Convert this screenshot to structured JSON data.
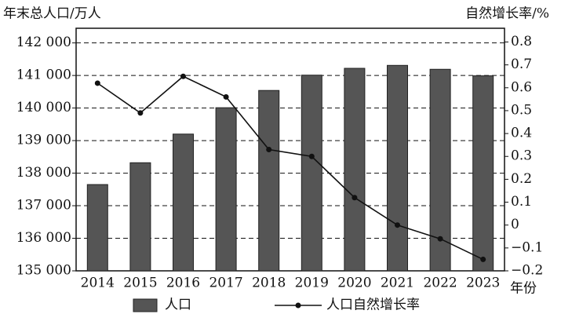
{
  "chart_data": {
    "type": "bar",
    "y_label": "年末总人口/万人",
    "y2_label": "自然增长率/%",
    "x_label": "年份",
    "categories": [
      "2014",
      "2015",
      "2016",
      "2017",
      "2018",
      "2019",
      "2020",
      "2021",
      "2022",
      "2023"
    ],
    "series": [
      {
        "name": "人口",
        "type": "bar",
        "color": "#555555",
        "values": [
          137650,
          138320,
          139200,
          140010,
          140540,
          141010,
          141220,
          141310,
          141190,
          140990
        ]
      },
      {
        "name": "人口自然增长率",
        "type": "line",
        "axis": "y2",
        "color": "#111111",
        "values": [
          0.62,
          0.49,
          0.65,
          0.56,
          0.33,
          0.3,
          0.12,
          0.0,
          -0.06,
          -0.15
        ]
      }
    ],
    "ylim": [
      135000,
      142450
    ],
    "yticks": [
      {
        "value": 135000,
        "label": "135 000"
      },
      {
        "value": 136000,
        "label": "136 000"
      },
      {
        "value": 137000,
        "label": "137 000"
      },
      {
        "value": 138000,
        "label": "138 000"
      },
      {
        "value": 139000,
        "label": "139 000"
      },
      {
        "value": 140000,
        "label": "140 000"
      },
      {
        "value": 141000,
        "label": "141 000"
      },
      {
        "value": 142000,
        "label": "142 000"
      }
    ],
    "y2lim": [
      -0.2,
      0.86
    ],
    "y2ticks": [
      {
        "value": -0.2,
        "label": "−0.2"
      },
      {
        "value": -0.1,
        "label": "−0.1"
      },
      0,
      0.1,
      0.2,
      0.3,
      0.4,
      0.5,
      0.6,
      0.7,
      0.8
    ],
    "grid": true
  }
}
